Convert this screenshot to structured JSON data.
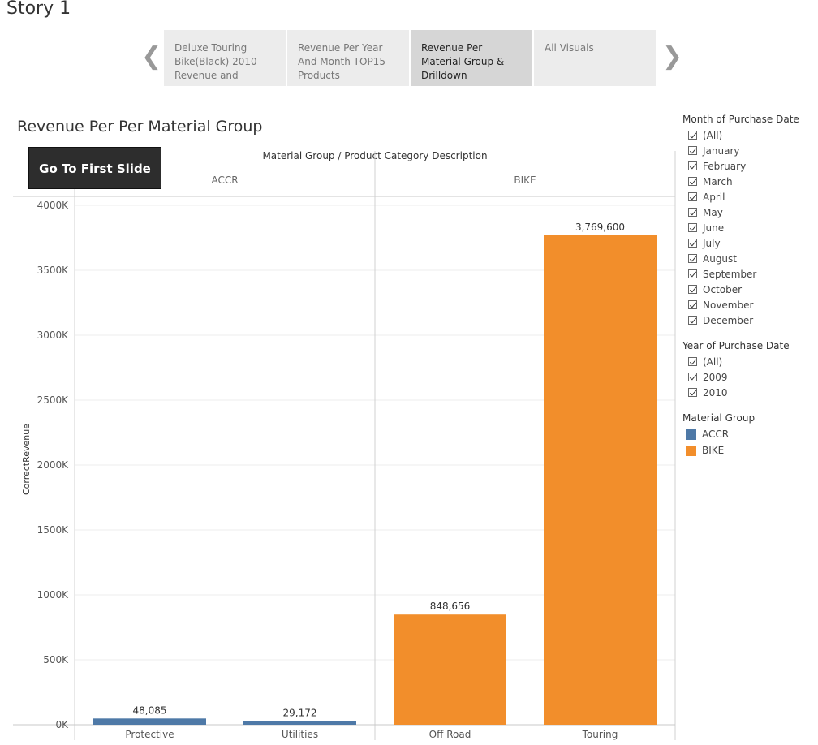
{
  "story": {
    "title": "Story 1"
  },
  "tabs": [
    {
      "label": "Deluxe Touring Bike(Black) 2010 Revenue and",
      "active": false
    },
    {
      "label": "Revenue Per Year And Month TOP15 Products",
      "active": false
    },
    {
      "label": "Revenue Per Material Group & Drilldown",
      "active": true
    },
    {
      "label": "All Visuals",
      "active": false
    }
  ],
  "nav": {
    "prev_icon": "chevron-left-icon",
    "next_icon": "chevron-right-icon"
  },
  "sheet": {
    "title": "Revenue Per Per Material Group",
    "button_label": "Go To First Slide"
  },
  "filters": {
    "month": {
      "title": "Month of Purchase Date",
      "items": [
        "(All)",
        "January",
        "February",
        "March",
        "April",
        "May",
        "June",
        "July",
        "August",
        "September",
        "October",
        "November",
        "December"
      ]
    },
    "year": {
      "title": "Year of Purchase Date",
      "items": [
        "(All)",
        "2009",
        "2010"
      ]
    },
    "material": {
      "title": "Material Group",
      "items": [
        {
          "label": "ACCR",
          "color": "#4e79a7"
        },
        {
          "label": "BIKE",
          "color": "#f28e2b"
        }
      ]
    }
  },
  "chart_data": {
    "type": "bar",
    "title": "Material Group / Product Category Description",
    "ylabel": "CorrectRevenue",
    "ylim": [
      0,
      4000000
    ],
    "yticks": [
      {
        "value": 0,
        "label": "0K"
      },
      {
        "value": 500000,
        "label": "500K"
      },
      {
        "value": 1000000,
        "label": "1000K"
      },
      {
        "value": 1500000,
        "label": "1500K"
      },
      {
        "value": 2000000,
        "label": "2000K"
      },
      {
        "value": 2500000,
        "label": "2500K"
      },
      {
        "value": 3000000,
        "label": "3000K"
      },
      {
        "value": 3500000,
        "label": "3500K"
      },
      {
        "value": 4000000,
        "label": "4000K"
      }
    ],
    "groups": [
      {
        "name": "ACCR",
        "color": "#4e79a7",
        "categories": [
          "Protective",
          "Utilities"
        ],
        "values": [
          48085,
          29172
        ],
        "labels": [
          "48,085",
          "29,172"
        ]
      },
      {
        "name": "BIKE",
        "color": "#f28e2b",
        "categories": [
          "Off Road",
          "Touring"
        ],
        "values": [
          848656,
          3769600
        ],
        "labels": [
          "848,656",
          "3,769,600"
        ]
      }
    ],
    "grid": true,
    "legend": "right"
  }
}
